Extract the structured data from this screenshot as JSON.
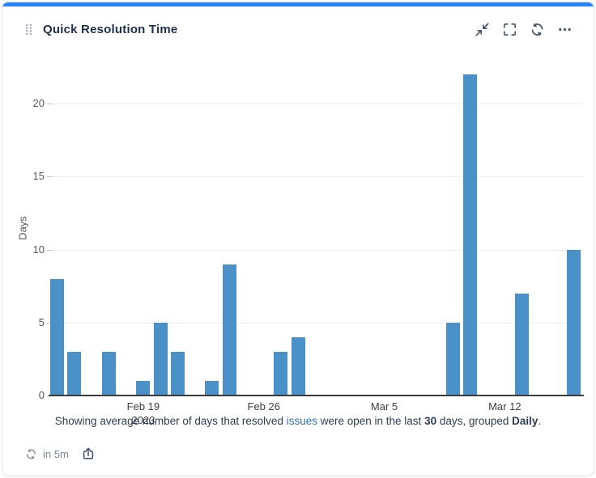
{
  "widget": {
    "title": "Quick Resolution Time",
    "accent_color": "#2684FF",
    "header_icons": [
      "collapse",
      "expand",
      "refresh",
      "more-options"
    ]
  },
  "caption": {
    "part1": "Showing average number of days that resolved ",
    "link": "issues",
    "part2": " were open in the last ",
    "days_count": "30",
    "part3": " days, grouped ",
    "grouping": "Daily",
    "part4": "."
  },
  "footer": {
    "refresh_note": "in 5m"
  },
  "chart_data": {
    "type": "bar",
    "title": "Quick Resolution Time",
    "xlabel": "",
    "ylabel": "Days",
    "ylim": [
      0,
      22.6
    ],
    "yticks": [
      0,
      5,
      10,
      15,
      20
    ],
    "grid": true,
    "legend": "none",
    "bar_color": "#4A90C9",
    "x_domain_days": 31,
    "x_start_date": "Feb 14, 2023",
    "x_end_date": "Mar 16, 2023",
    "xticks": [
      {
        "day": 5,
        "label": "Feb 19",
        "sub": "2023"
      },
      {
        "day": 12,
        "label": "Feb 26"
      },
      {
        "day": 19,
        "label": "Mar 5"
      },
      {
        "day": 26,
        "label": "Mar 12"
      }
    ],
    "points": [
      {
        "date": "Feb 14",
        "day": 0,
        "value": 8
      },
      {
        "date": "Feb 15",
        "day": 1,
        "value": 3
      },
      {
        "date": "Feb 17",
        "day": 3,
        "value": 3
      },
      {
        "date": "Feb 19",
        "day": 5,
        "value": 1
      },
      {
        "date": "Feb 20",
        "day": 6,
        "value": 5
      },
      {
        "date": "Feb 21",
        "day": 7,
        "value": 3
      },
      {
        "date": "Feb 23",
        "day": 9,
        "value": 1
      },
      {
        "date": "Feb 24",
        "day": 10,
        "value": 9
      },
      {
        "date": "Feb 27",
        "day": 13,
        "value": 3
      },
      {
        "date": "Feb 28",
        "day": 14,
        "value": 4
      },
      {
        "date": "Mar 9",
        "day": 23,
        "value": 5
      },
      {
        "date": "Mar 10",
        "day": 24,
        "value": 22
      },
      {
        "date": "Mar 13",
        "day": 27,
        "value": 7
      },
      {
        "date": "Mar 16",
        "day": 30,
        "value": 10
      }
    ]
  }
}
